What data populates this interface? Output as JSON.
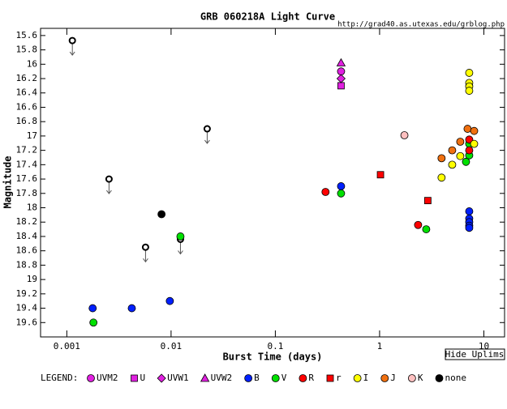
{
  "chart_data": {
    "type": "scatter",
    "title": "GRB 060218A Light Curve",
    "source_url": "http://grad40.as.utexas.edu/grblog.php",
    "x_label": "Burst Time (days)",
    "y_label": "Magnitude",
    "legend_title": "LEGEND:",
    "button": "Hide Uplims",
    "xscale": "log",
    "yinverted": true,
    "xlim": [
      0.00056,
      15.8
    ],
    "xticks": [
      0.001,
      0.01,
      0.1,
      1,
      10
    ],
    "ylim": [
      15.5,
      19.8
    ],
    "yticks": [
      15.6,
      15.8,
      16,
      16.2,
      16.4,
      16.6,
      16.8,
      17,
      17.2,
      17.4,
      17.6,
      17.8,
      18,
      18.2,
      18.4,
      18.6,
      18.8,
      19,
      19.2,
      19.4,
      19.6
    ],
    "upper_limits": {
      "x": [
        0.00113,
        0.00254,
        0.00569,
        0.0123,
        0.0222
      ],
      "values": [
        15.67,
        17.6,
        18.55,
        18.44,
        16.9
      ]
    },
    "series": [
      {
        "name": "UVM2",
        "color": "#e020e0",
        "marker": "circle",
        "x": [
          0.427
        ],
        "values": [
          16.1
        ]
      },
      {
        "name": "U",
        "color": "#e020e0",
        "marker": "square",
        "x": [
          0.427
        ],
        "values": [
          16.3
        ]
      },
      {
        "name": "UVW1",
        "color": "#e020e0",
        "marker": "diamond",
        "x": [
          0.427
        ],
        "values": [
          16.2
        ]
      },
      {
        "name": "UVW2",
        "color": "#e020e0",
        "marker": "triangle",
        "x": [
          0.427
        ],
        "values": [
          15.98
        ]
      },
      {
        "name": "B",
        "color": "#0020ff",
        "marker": "circle",
        "x": [
          0.00177,
          0.0042,
          0.00973,
          0.427,
          7.24,
          7.24,
          7.24,
          7.24,
          7.24
        ],
        "values": [
          19.4,
          19.4,
          19.3,
          17.7,
          18.05,
          18.15,
          18.2,
          18.25,
          18.28
        ]
      },
      {
        "name": "V",
        "color": "#00e000",
        "marker": "circle",
        "x": [
          0.0018,
          0.0123,
          0.427,
          2.8,
          6.74,
          7.24,
          7.24
        ],
        "values": [
          19.6,
          18.4,
          17.8,
          18.3,
          17.36,
          17.11,
          17.27
        ]
      },
      {
        "name": "R",
        "color": "#ff0000",
        "marker": "circle",
        "x": [
          0.303,
          2.34,
          7.24,
          7.24
        ],
        "values": [
          17.78,
          18.24,
          17.2,
          17.05
        ]
      },
      {
        "name": "r",
        "color": "#ff0000",
        "marker": "square",
        "x": [
          1.02,
          2.9
        ],
        "values": [
          17.54,
          17.9
        ]
      },
      {
        "name": "I",
        "color": "#ffff00",
        "marker": "circle",
        "x": [
          3.93,
          4.97,
          5.94,
          7.24,
          7.24,
          7.24,
          7.24,
          8.07
        ],
        "values": [
          17.58,
          17.4,
          17.28,
          16.12,
          16.26,
          16.31,
          16.37,
          17.11
        ]
      },
      {
        "name": "J",
        "color": "#f07010",
        "marker": "circle",
        "x": [
          3.93,
          4.97,
          5.94,
          6.98,
          8.07
        ],
        "values": [
          17.31,
          17.2,
          17.08,
          16.9,
          16.93
        ]
      },
      {
        "name": "K",
        "color": "#ffc0c0",
        "marker": "circle",
        "x": [
          1.73
        ],
        "values": [
          16.99
        ]
      },
      {
        "name": "none",
        "color": "#000000",
        "marker": "circle",
        "x": [
          0.0081
        ],
        "values": [
          18.09
        ]
      }
    ]
  }
}
